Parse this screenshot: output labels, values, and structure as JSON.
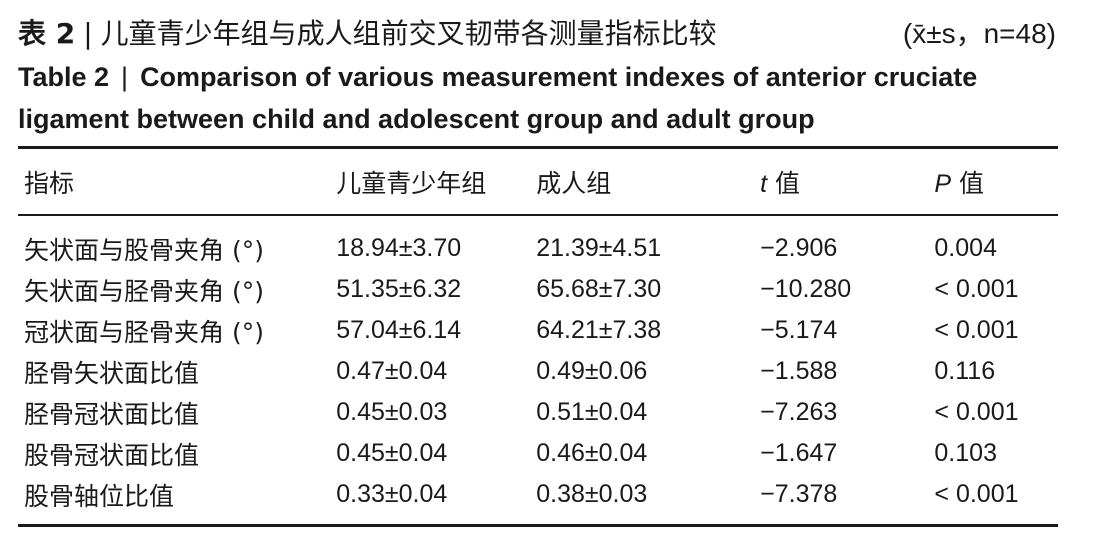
{
  "title_cn": {
    "label": "表 2",
    "separator": "|",
    "text": "儿童青少年组与成人组前交叉韧带各测量指标比较",
    "stat": "(x̄±s，n=48)"
  },
  "title_en": {
    "label": "Table 2",
    "separator": "|",
    "text": "Comparison of various measurement indexes of anterior cruciate ligament between child and adolescent group and adult group"
  },
  "table": {
    "headers": {
      "index": "指标",
      "child": "儿童青少年组",
      "adult": "成人组",
      "t_var": "t",
      "t_suffix": " 值",
      "p_var": "P",
      "p_suffix": " 值"
    },
    "rows": [
      {
        "index": "矢状面与股骨夹角 (°)",
        "child": "18.94±3.70",
        "adult": "21.39±4.51",
        "t": "−2.906",
        "p": "0.004"
      },
      {
        "index": "矢状面与胫骨夹角 (°)",
        "child": "51.35±6.32",
        "adult": "65.68±7.30",
        "t": "−10.280",
        "p": "< 0.001"
      },
      {
        "index": "冠状面与胫骨夹角 (°)",
        "child": "57.04±6.14",
        "adult": "64.21±7.38",
        "t": "−5.174",
        "p": "< 0.001"
      },
      {
        "index": "胫骨矢状面比值",
        "child": "0.47±0.04",
        "adult": "0.49±0.06",
        "t": "−1.588",
        "p": "0.116"
      },
      {
        "index": "胫骨冠状面比值",
        "child": "0.45±0.03",
        "adult": "0.51±0.04",
        "t": "−7.263",
        "p": "< 0.001"
      },
      {
        "index": "股骨冠状面比值",
        "child": "0.45±0.04",
        "adult": "0.46±0.04",
        "t": "−1.647",
        "p": "0.103"
      },
      {
        "index": "股骨轴位比值",
        "child": "0.33±0.04",
        "adult": "0.38±0.03",
        "t": "−7.378",
        "p": "< 0.001"
      }
    ]
  }
}
